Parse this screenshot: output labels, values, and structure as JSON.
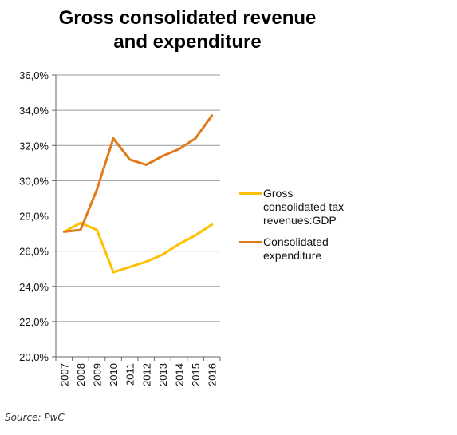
{
  "chart_data": {
    "type": "line",
    "title_lines": [
      "Gross consolidated revenue",
      "and expenditure"
    ],
    "x": [
      "2007",
      "2008",
      "2009",
      "2010",
      "2011",
      "2012",
      "2013",
      "2014",
      "2015",
      "2016"
    ],
    "ylim": [
      20,
      36
    ],
    "y_ticks": [
      "20,0%",
      "22,0%",
      "24,0%",
      "26,0%",
      "28,0%",
      "30,0%",
      "32,0%",
      "34,0%",
      "36,0%"
    ],
    "grid": true,
    "legend_position": "right",
    "series": [
      {
        "name_lines": [
          "Gross",
          "consolidated tax",
          "revenues:GDP"
        ],
        "color": "#FFC000",
        "values": [
          27.1,
          27.6,
          27.2,
          24.8,
          25.1,
          25.4,
          25.8,
          26.4,
          26.9,
          27.5
        ]
      },
      {
        "name_lines": [
          "Consolidated",
          "expenditure"
        ],
        "color": "#E07B1A",
        "values": [
          27.1,
          27.2,
          29.5,
          32.4,
          31.2,
          30.9,
          31.4,
          31.8,
          32.4,
          33.7
        ]
      }
    ]
  },
  "source": "Source: PwC"
}
